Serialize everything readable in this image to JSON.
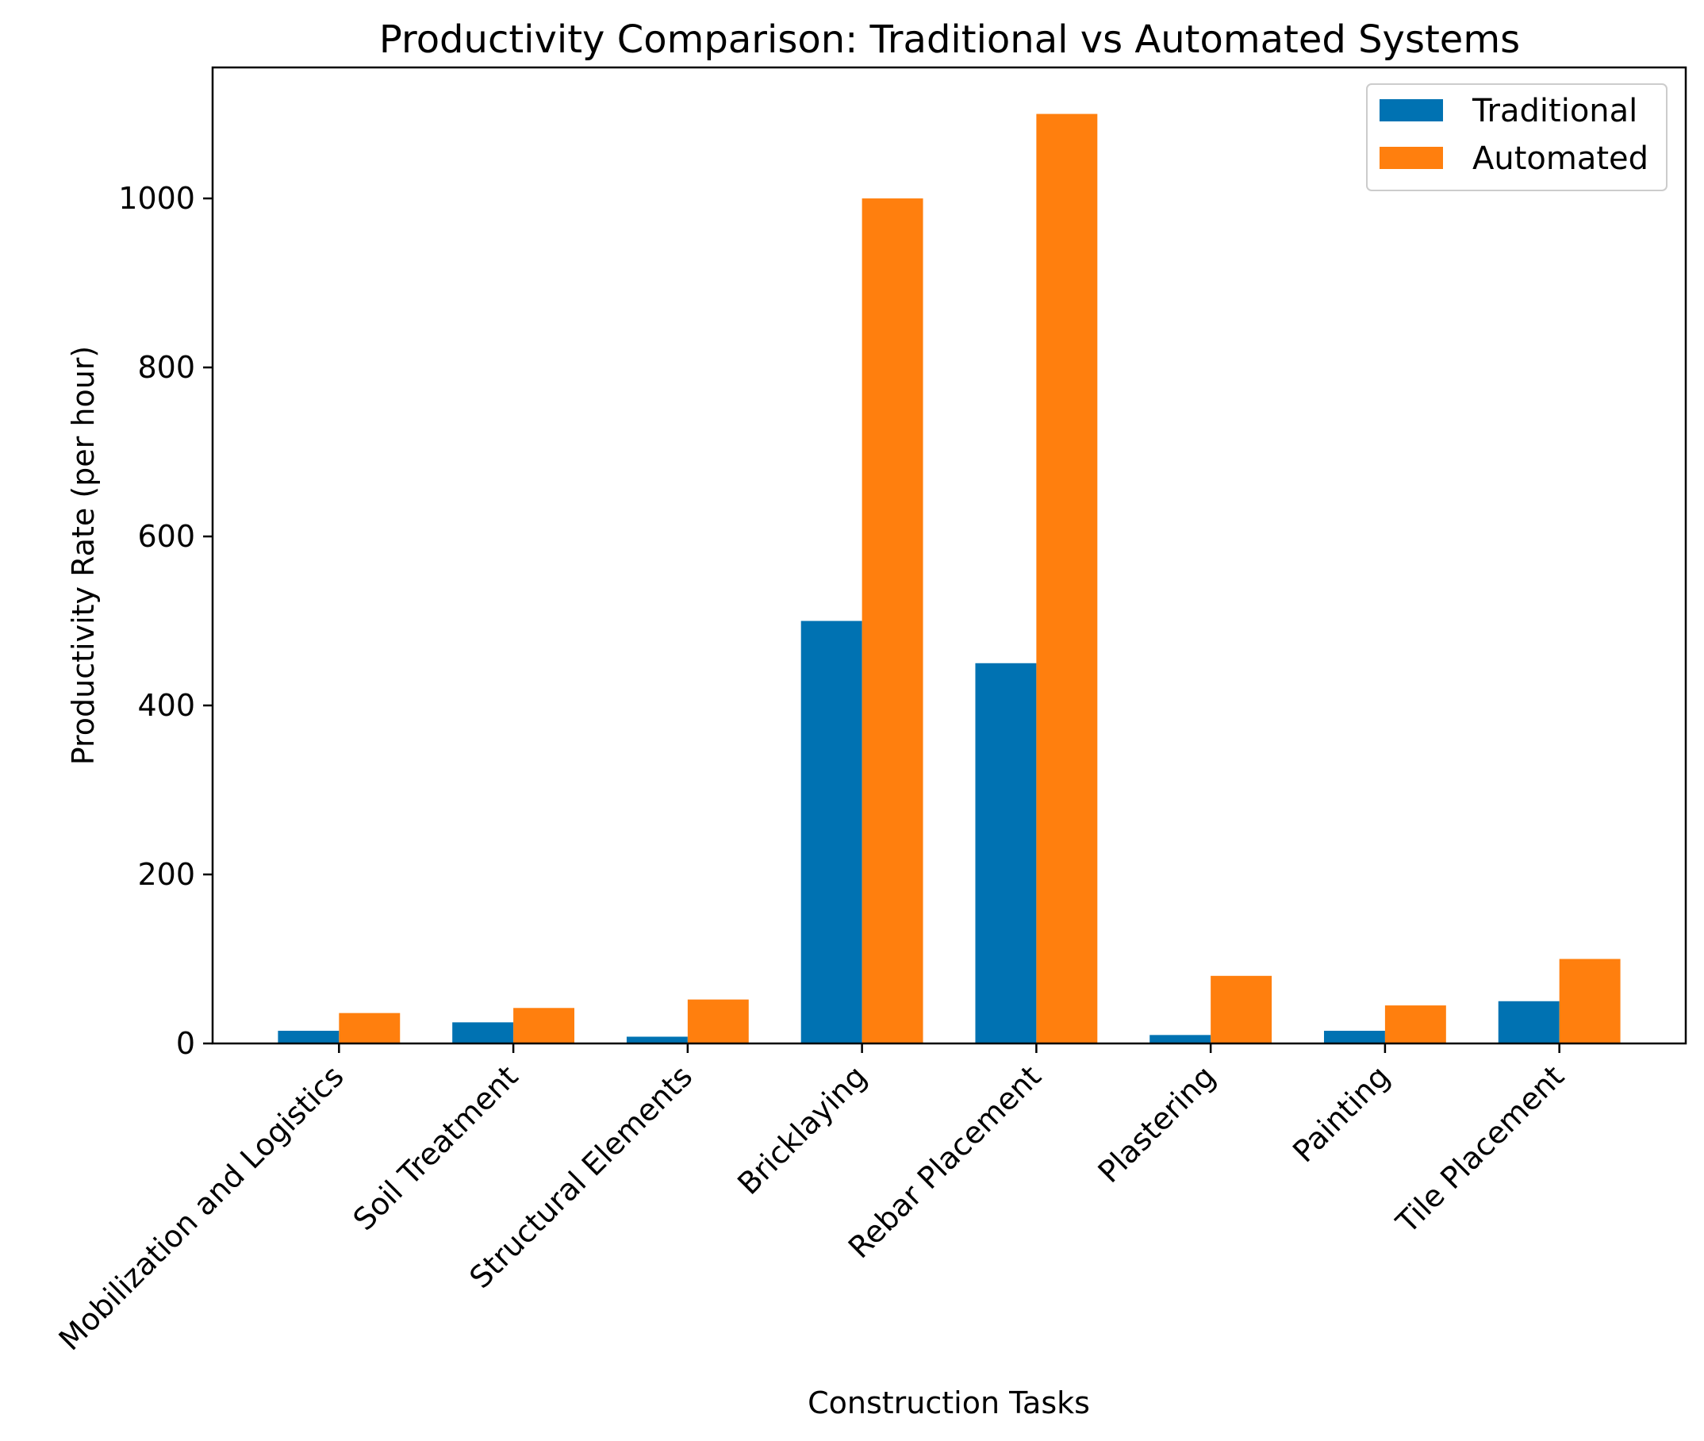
{
  "chart_data": {
    "type": "bar",
    "title": "Productivity Comparison: Traditional vs Automated Systems",
    "xlabel": "Construction Tasks",
    "ylabel": "Productivity Rate (per hour)",
    "ylim": [
      0,
      1155
    ],
    "yticks": [
      0,
      200,
      400,
      600,
      800,
      1000
    ],
    "grid": false,
    "legend_position": "top-right",
    "categories": [
      "Mobilization and Logistics",
      "Soil Treatment",
      "Structural Elements",
      "Bricklaying",
      "Rebar Placement",
      "Plastering",
      "Painting",
      "Tile Placement"
    ],
    "series": [
      {
        "name": "Traditional",
        "color": "#0072B2",
        "values": [
          15,
          25,
          8,
          500,
          450,
          10,
          15,
          50
        ]
      },
      {
        "name": "Automated",
        "color": "#FF7F0E",
        "values": [
          36,
          42,
          52,
          1000,
          1100,
          80,
          45,
          100
        ]
      }
    ]
  }
}
